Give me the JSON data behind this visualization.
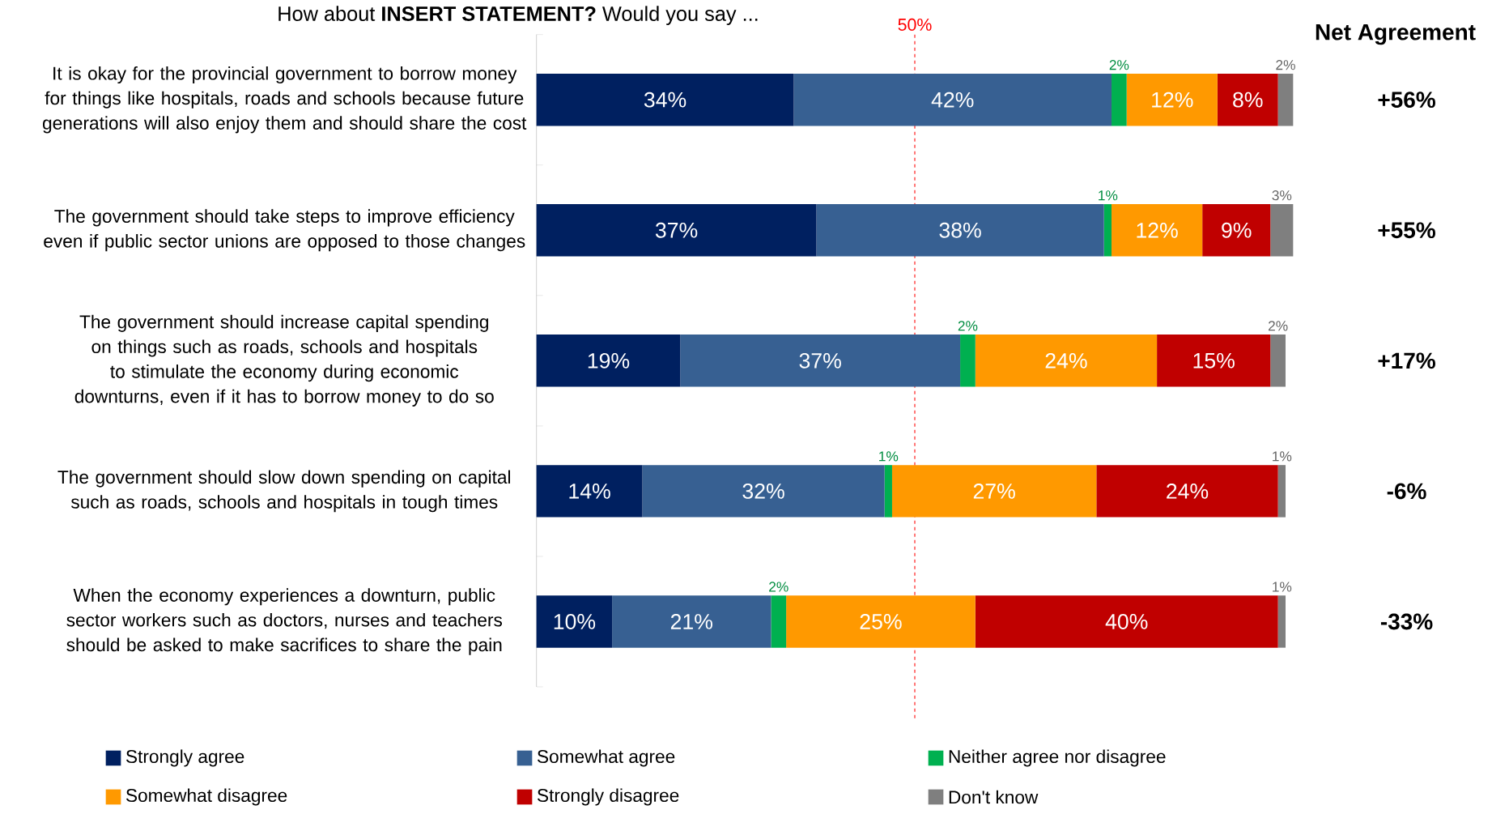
{
  "chart_data": {
    "type": "bar",
    "orientation": "horizontal",
    "stacked": true,
    "title": "How about **INSERT STATEMENT?** Would you say ...",
    "categories": [
      "It is okay for the provincial government to borrow money for things like hospitals, roads and schools because future generations will also enjoy them and should share the cost",
      "The government should take steps to improve efficiency even if public sector unions are opposed to those changes",
      "The government should increase capital spending on things such as roads, schools and hospitals to stimulate the economy during economic downturns, even if it has to borrow money to do so",
      "The government should slow down spending on capital such as roads, schools and hospitals in tough times",
      "When the economy experiences a downturn, public sector workers such as doctors, nurses and teachers should be asked to make sacrifices to share the pain"
    ],
    "series": [
      {
        "name": "Strongly agree",
        "color": "#002060",
        "values": [
          34,
          37,
          19,
          14,
          10
        ],
        "value_labels": [
          "34%",
          "37%",
          "19%",
          "14%",
          "10%"
        ]
      },
      {
        "name": "Somewhat agree",
        "color": "#376092",
        "values": [
          42,
          38,
          37,
          32,
          21
        ],
        "value_labels": [
          "42%",
          "38%",
          "37%",
          "32%",
          "21%"
        ]
      },
      {
        "name": "Neither agree nor disagree",
        "color": "#00b050",
        "values": [
          2,
          1,
          2,
          1,
          2
        ],
        "value_labels": [
          "2%",
          "1%",
          "2%",
          "1%",
          "2%"
        ]
      },
      {
        "name": "Somewhat disagree",
        "color": "#ff9900",
        "values": [
          12,
          12,
          24,
          27,
          25
        ],
        "value_labels": [
          "12%",
          "12%",
          "24%",
          "27%",
          "25%"
        ]
      },
      {
        "name": "Strongly disagree",
        "color": "#c00000",
        "values": [
          8,
          9,
          15,
          24,
          40
        ],
        "value_labels": [
          "8%",
          "9%",
          "15%",
          "24%",
          "40%"
        ]
      },
      {
        "name": "Don't know",
        "color": "#7f7f7f",
        "values": [
          2,
          3,
          2,
          1,
          1
        ],
        "value_labels": [
          "2%",
          "3%",
          "2%",
          "1%",
          "1%"
        ]
      }
    ],
    "xlim": [
      0,
      100
    ],
    "ref_lines": [
      {
        "axis": "x",
        "value": 50,
        "label": "50%",
        "color": "#ff0000",
        "line_style": "dashed"
      }
    ],
    "annotations": [
      "Net Agreement",
      "+56%",
      "+55%",
      "+17%",
      "-6%",
      "-33%"
    ],
    "legend": "bottom"
  }
}
